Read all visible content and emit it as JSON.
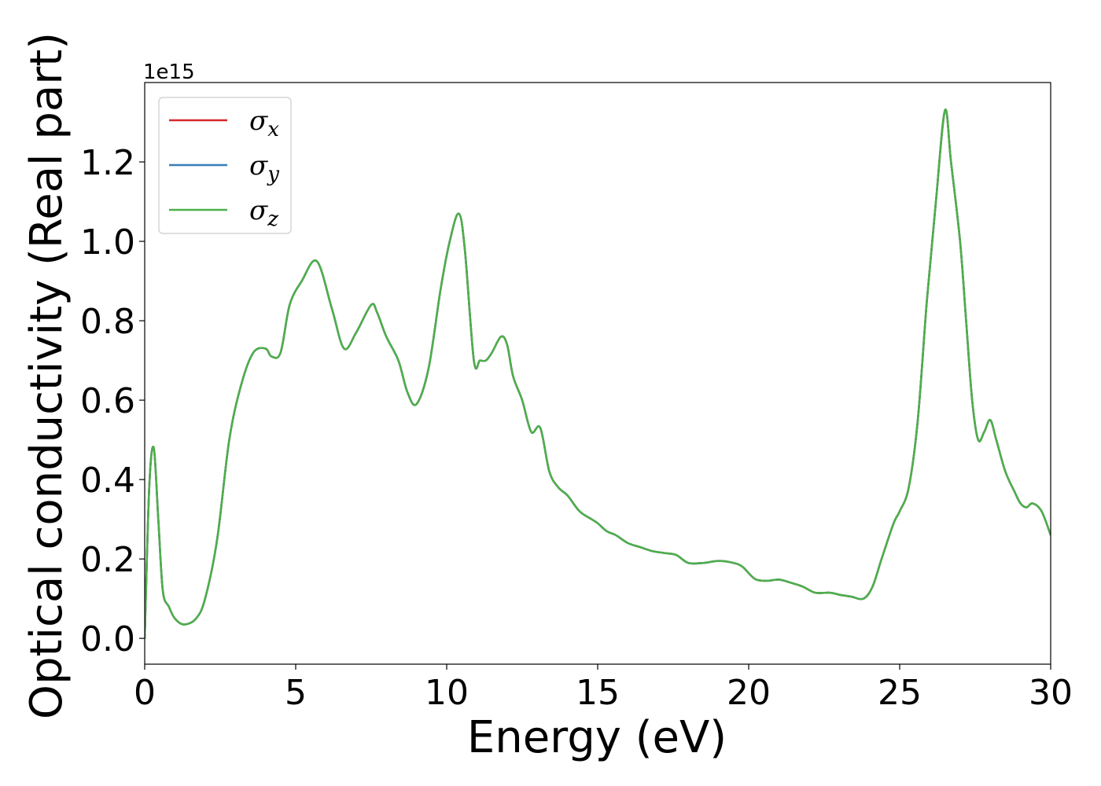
{
  "chart_data": {
    "type": "line",
    "xlabel": "Energy (eV)",
    "ylabel": "Optical conductivity (Real part)",
    "y_offset_label": "1e15",
    "xlim": [
      0,
      30
    ],
    "ylim": [
      -0.065,
      1.4
    ],
    "x_ticks": [
      0,
      5,
      10,
      15,
      20,
      25,
      30
    ],
    "x_tick_labels": [
      "0",
      "5",
      "10",
      "15",
      "20",
      "25",
      "30"
    ],
    "y_ticks": [
      0.0,
      0.2,
      0.4,
      0.6,
      0.8,
      1.0,
      1.2
    ],
    "y_tick_labels": [
      "0.0",
      "0.2",
      "0.4",
      "0.6",
      "0.8",
      "1.0",
      "1.2"
    ],
    "grid": false,
    "legend_position": "top-left",
    "x": [
      0,
      0.15,
      0.3,
      0.45,
      0.6,
      0.8,
      1.0,
      1.3,
      1.7,
      2.0,
      2.4,
      2.8,
      3.2,
      3.6,
      4.0,
      4.2,
      4.5,
      4.8,
      5.2,
      5.7,
      6.2,
      6.6,
      7.0,
      7.5,
      7.7,
      8.0,
      8.4,
      8.7,
      9.0,
      9.4,
      9.8,
      10.1,
      10.4,
      10.6,
      10.9,
      11.1,
      11.3,
      11.5,
      11.8,
      12.0,
      12.2,
      12.5,
      12.8,
      13.1,
      13.4,
      13.7,
      14.0,
      14.4,
      14.8,
      15.0,
      15.3,
      15.6,
      16.0,
      16.4,
      16.8,
      17.2,
      17.6,
      18.0,
      18.5,
      19.0,
      19.5,
      19.8,
      20.2,
      20.6,
      21.0,
      21.4,
      21.8,
      22.2,
      22.7,
      23.0,
      23.4,
      23.8,
      24.1,
      24.4,
      24.8,
      25.0,
      25.3,
      25.6,
      25.9,
      26.2,
      26.5,
      26.7,
      27.0,
      27.2,
      27.4,
      27.6,
      27.8,
      28.0,
      28.2,
      28.5,
      28.8,
      29.0,
      29.2,
      29.4,
      29.7,
      30.0
    ],
    "series": [
      {
        "name": "σx",
        "color": "#d62728",
        "values": [
          0.0,
          0.38,
          0.48,
          0.3,
          0.12,
          0.08,
          0.05,
          0.035,
          0.05,
          0.1,
          0.25,
          0.5,
          0.64,
          0.72,
          0.73,
          0.71,
          0.72,
          0.84,
          0.9,
          0.95,
          0.83,
          0.73,
          0.77,
          0.84,
          0.82,
          0.76,
          0.7,
          0.62,
          0.59,
          0.68,
          0.88,
          1.0,
          1.07,
          0.98,
          0.7,
          0.7,
          0.7,
          0.72,
          0.76,
          0.74,
          0.66,
          0.6,
          0.52,
          0.53,
          0.42,
          0.38,
          0.36,
          0.32,
          0.3,
          0.29,
          0.27,
          0.26,
          0.24,
          0.23,
          0.22,
          0.215,
          0.21,
          0.19,
          0.19,
          0.195,
          0.19,
          0.18,
          0.15,
          0.145,
          0.148,
          0.14,
          0.13,
          0.115,
          0.115,
          0.11,
          0.105,
          0.1,
          0.13,
          0.2,
          0.29,
          0.32,
          0.38,
          0.55,
          0.85,
          1.1,
          1.33,
          1.2,
          1.0,
          0.8,
          0.6,
          0.5,
          0.52,
          0.55,
          0.5,
          0.42,
          0.37,
          0.34,
          0.33,
          0.34,
          0.32,
          0.26
        ]
      },
      {
        "name": "σy",
        "color": "#377eb8",
        "values": [
          0.0,
          0.38,
          0.48,
          0.3,
          0.12,
          0.08,
          0.05,
          0.035,
          0.05,
          0.1,
          0.25,
          0.5,
          0.64,
          0.72,
          0.73,
          0.71,
          0.72,
          0.84,
          0.9,
          0.95,
          0.83,
          0.73,
          0.77,
          0.84,
          0.82,
          0.76,
          0.7,
          0.62,
          0.59,
          0.68,
          0.88,
          1.0,
          1.07,
          0.98,
          0.7,
          0.7,
          0.7,
          0.72,
          0.76,
          0.74,
          0.66,
          0.6,
          0.52,
          0.53,
          0.42,
          0.38,
          0.36,
          0.32,
          0.3,
          0.29,
          0.27,
          0.26,
          0.24,
          0.23,
          0.22,
          0.215,
          0.21,
          0.19,
          0.19,
          0.195,
          0.19,
          0.18,
          0.15,
          0.145,
          0.148,
          0.14,
          0.13,
          0.115,
          0.115,
          0.11,
          0.105,
          0.1,
          0.13,
          0.2,
          0.29,
          0.32,
          0.38,
          0.55,
          0.85,
          1.1,
          1.33,
          1.2,
          1.0,
          0.8,
          0.6,
          0.5,
          0.52,
          0.55,
          0.5,
          0.42,
          0.37,
          0.34,
          0.33,
          0.34,
          0.32,
          0.26
        ]
      },
      {
        "name": "σz",
        "color": "#4daf4a",
        "values": [
          0.0,
          0.38,
          0.48,
          0.3,
          0.12,
          0.08,
          0.05,
          0.035,
          0.05,
          0.1,
          0.25,
          0.5,
          0.64,
          0.72,
          0.73,
          0.71,
          0.72,
          0.84,
          0.9,
          0.95,
          0.83,
          0.73,
          0.77,
          0.84,
          0.82,
          0.76,
          0.7,
          0.62,
          0.59,
          0.68,
          0.88,
          1.0,
          1.07,
          0.98,
          0.7,
          0.7,
          0.7,
          0.72,
          0.76,
          0.74,
          0.66,
          0.6,
          0.52,
          0.53,
          0.42,
          0.38,
          0.36,
          0.32,
          0.3,
          0.29,
          0.27,
          0.26,
          0.24,
          0.23,
          0.22,
          0.215,
          0.21,
          0.19,
          0.19,
          0.195,
          0.19,
          0.18,
          0.15,
          0.145,
          0.148,
          0.14,
          0.13,
          0.115,
          0.115,
          0.11,
          0.105,
          0.1,
          0.13,
          0.2,
          0.29,
          0.32,
          0.38,
          0.55,
          0.85,
          1.1,
          1.33,
          1.2,
          1.0,
          0.8,
          0.6,
          0.5,
          0.52,
          0.55,
          0.5,
          0.42,
          0.37,
          0.34,
          0.33,
          0.34,
          0.32,
          0.26
        ]
      }
    ]
  }
}
